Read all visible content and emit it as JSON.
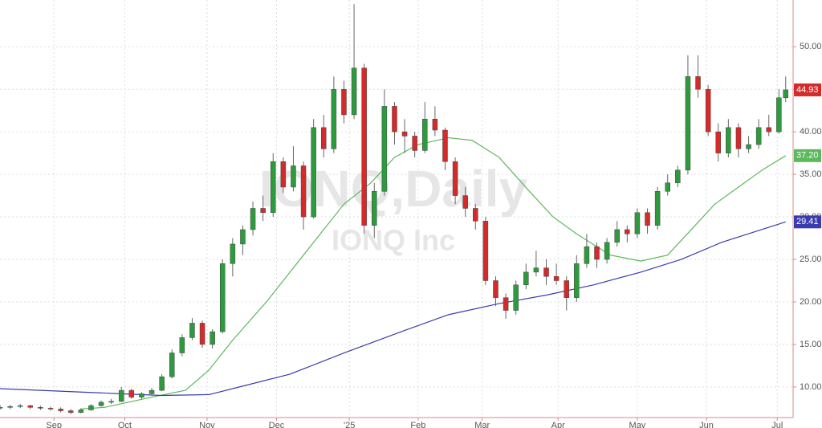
{
  "chart_data": {
    "type": "candlestick",
    "watermark": "IONQ,Daily",
    "watermark_subtitle": "IONQ Inc",
    "xlim": [
      0,
      235.2
    ],
    "ylim": [
      6.4,
      55.5
    ],
    "xticks": [
      {
        "value": 16,
        "label": "Sep"
      },
      {
        "value": 37,
        "label": "Oct"
      },
      {
        "value": 61.4,
        "label": "Nov"
      },
      {
        "value": 82,
        "label": "Dec"
      },
      {
        "value": 103.6,
        "label": "'25"
      },
      {
        "value": 124,
        "label": "Feb"
      },
      {
        "value": 143,
        "label": "Mar"
      },
      {
        "value": 165.5,
        "label": "Apr"
      },
      {
        "value": 189,
        "label": "May"
      },
      {
        "value": 209.5,
        "label": "Jun"
      },
      {
        "value": 230.5,
        "label": "Jul"
      }
    ],
    "yticks": [
      {
        "value": 10,
        "label": "10.00"
      },
      {
        "value": 15,
        "label": "15.00"
      },
      {
        "value": 20,
        "label": "20.00"
      },
      {
        "value": 25,
        "label": "25.00"
      },
      {
        "value": 30,
        "label": "30.00"
      },
      {
        "value": 35,
        "label": "35.00"
      },
      {
        "value": 40,
        "label": "40.00"
      },
      {
        "value": 45,
        "label": "45.00"
      },
      {
        "value": 50,
        "label": "50.00"
      }
    ],
    "grid": true,
    "up_color": "#2e9a3e",
    "down_color": "#d42a2a",
    "end_label": "44.93",
    "x": [
      0,
      3,
      6,
      9,
      12,
      15,
      18,
      21,
      24,
      27,
      30,
      33,
      36,
      39,
      42,
      45,
      48,
      51,
      54,
      57,
      60,
      63,
      66,
      69,
      72,
      75,
      78,
      81,
      84,
      87,
      90,
      93,
      96,
      99,
      102,
      105,
      108,
      111,
      114,
      117,
      120,
      123,
      126,
      129,
      132,
      135,
      138,
      141,
      144,
      147,
      150,
      153,
      156,
      159,
      162,
      165,
      168,
      171,
      174,
      177,
      180,
      183,
      186,
      189,
      192,
      195,
      198,
      201,
      204,
      207,
      210,
      213,
      216,
      219,
      222,
      225,
      228,
      231,
      233
    ],
    "open": [
      7.5,
      7.6,
      7.7,
      7.8,
      7.6,
      7.5,
      7.4,
      7.2,
      7.0,
      7.3,
      7.8,
      8.2,
      8.3,
      9.6,
      8.8,
      9.2,
      9.6,
      11.2,
      14.0,
      15.8,
      17.5,
      15.0,
      16.5,
      24.5,
      26.8,
      28.5,
      31.0,
      30.5,
      36.5,
      33.5,
      36.0,
      30.0,
      40.5,
      38.0,
      45.0,
      42.0,
      47.5,
      29.0,
      33.0,
      43.0,
      40.0,
      39.5,
      37.8,
      41.5,
      40.2,
      36.5,
      32.5,
      31.0,
      29.5,
      22.5,
      20.5,
      19.0,
      22.0,
      23.5,
      24.0,
      23.0,
      22.5,
      20.5,
      24.5,
      26.5,
      25.0,
      27.0,
      28.5,
      28.0,
      30.5,
      29.0,
      33.0,
      34.0,
      35.5,
      46.5,
      45.0,
      40.0,
      37.5,
      40.5,
      38.0,
      38.5,
      40.5,
      40.0,
      44.0
    ],
    "high": [
      7.9,
      7.9,
      8.0,
      7.9,
      7.8,
      7.7,
      7.6,
      7.4,
      7.5,
      8.0,
      8.4,
      8.6,
      10.0,
      9.8,
      9.4,
      9.9,
      11.5,
      14.4,
      16.2,
      18.1,
      17.8,
      16.8,
      25.0,
      27.5,
      29.0,
      31.8,
      32.5,
      37.5,
      37.0,
      38.3,
      36.5,
      41.5,
      42.0,
      46.5,
      46.0,
      55.0,
      48.0,
      34.0,
      45.0,
      43.5,
      41.5,
      40.0,
      43.5,
      43.0,
      40.5,
      37.0,
      33.5,
      31.5,
      30.0,
      23.0,
      21.0,
      22.5,
      24.5,
      26.0,
      25.0,
      24.5,
      23.0,
      25.5,
      28.0,
      27.0,
      27.5,
      29.5,
      29.0,
      31.0,
      31.0,
      33.5,
      35.0,
      36.0,
      49.0,
      49.0,
      45.5,
      41.0,
      41.5,
      41.0,
      39.5,
      41.5,
      42.0,
      45.0,
      46.5
    ],
    "low": [
      7.3,
      7.4,
      7.5,
      7.4,
      7.3,
      7.2,
      7.0,
      6.8,
      6.9,
      7.2,
      7.7,
      8.0,
      8.2,
      8.6,
      8.6,
      9.0,
      9.5,
      11.0,
      13.6,
      15.5,
      14.6,
      14.5,
      16.3,
      23.0,
      25.5,
      27.8,
      29.5,
      30.0,
      32.8,
      33.0,
      28.5,
      29.8,
      37.0,
      37.5,
      41.0,
      41.5,
      28.0,
      27.5,
      32.5,
      38.5,
      37.5,
      37.0,
      37.5,
      39.5,
      35.5,
      31.5,
      30.0,
      28.5,
      22.0,
      19.5,
      18.0,
      18.5,
      21.5,
      23.0,
      22.0,
      22.0,
      19.0,
      20.0,
      24.0,
      24.0,
      24.5,
      26.5,
      27.0,
      27.5,
      28.0,
      28.5,
      32.5,
      33.5,
      35.0,
      44.0,
      39.5,
      36.5,
      37.0,
      37.0,
      37.5,
      38.0,
      39.5,
      39.8,
      43.5
    ],
    "close": [
      7.6,
      7.7,
      7.8,
      7.6,
      7.5,
      7.4,
      7.2,
      7.0,
      7.3,
      7.8,
      8.2,
      8.3,
      9.6,
      8.8,
      9.2,
      9.6,
      11.2,
      14.0,
      15.8,
      17.5,
      15.0,
      16.5,
      24.5,
      26.8,
      28.5,
      31.0,
      30.5,
      36.5,
      33.5,
      36.0,
      30.0,
      40.5,
      38.0,
      45.0,
      42.0,
      47.5,
      29.0,
      33.0,
      43.0,
      40.0,
      39.5,
      37.8,
      41.5,
      40.2,
      36.5,
      32.5,
      31.0,
      29.5,
      22.5,
      20.5,
      19.0,
      22.0,
      23.5,
      24.0,
      23.0,
      22.5,
      20.5,
      24.5,
      26.5,
      25.0,
      27.0,
      28.5,
      28.0,
      30.5,
      29.0,
      33.0,
      34.0,
      35.5,
      46.5,
      45.0,
      40.0,
      37.5,
      40.5,
      38.0,
      38.5,
      40.5,
      40.0,
      44.0,
      44.93
    ],
    "series": [
      {
        "color": "#5cb85c",
        "end_label": "37.20",
        "x": [
          24,
          31,
          45,
          55,
          62,
          69,
          79,
          86,
          95,
          102,
          110,
          117,
          124,
          133,
          140,
          148,
          157,
          164,
          171,
          181,
          190,
          198,
          205,
          212,
          219,
          226,
          233
        ],
        "values": [
          7.4,
          7.6,
          8.8,
          9.6,
          12.0,
          15.5,
          20.0,
          23.5,
          28.0,
          31.5,
          34.0,
          37.0,
          38.5,
          39.3,
          39.0,
          37.0,
          33.0,
          30.0,
          28.0,
          25.5,
          24.8,
          25.5,
          28.5,
          31.5,
          33.5,
          35.5,
          37.2
        ]
      },
      {
        "color": "#3b3bb0",
        "end_label": "29.41",
        "x": [
          0,
          36,
          48,
          62,
          71,
          86,
          102,
          119,
          133,
          148,
          162,
          176,
          190,
          202,
          214,
          233
        ],
        "values": [
          9.8,
          9.2,
          9.0,
          9.1,
          10.0,
          11.5,
          14.0,
          16.5,
          18.5,
          19.8,
          20.8,
          22.0,
          23.5,
          25.0,
          27.0,
          29.41
        ]
      }
    ]
  }
}
